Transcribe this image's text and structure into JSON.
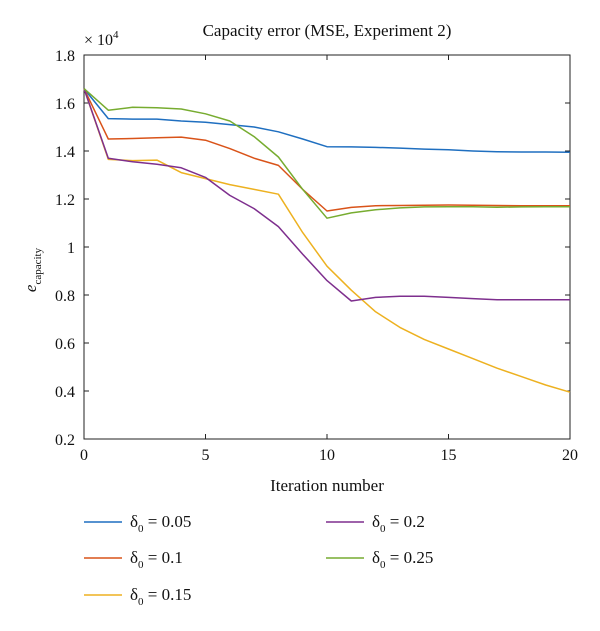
{
  "chart_data": {
    "type": "line",
    "title": "Capacity error (MSE, Experiment 2)",
    "xlabel": "Iteration number",
    "ylabel": "e",
    "ylabel_subscript": "capacity",
    "y_multiplier": "× 10",
    "y_multiplier_exponent": "4",
    "xlim": [
      0,
      20
    ],
    "ylim": [
      0.2,
      1.8
    ],
    "x_ticks": [
      0,
      5,
      10,
      15,
      20
    ],
    "y_ticks": [
      0.2,
      0.4,
      0.6,
      0.8,
      1,
      1.2,
      1.4,
      1.6,
      1.8
    ],
    "x_tick_labels": [
      "0",
      "5",
      "10",
      "15",
      "20"
    ],
    "y_tick_labels": [
      "0.2",
      "0.4",
      "0.6",
      "0.8",
      "1",
      "1.2",
      "1.4",
      "1.6",
      "1.8"
    ],
    "grid": false,
    "legend_position": "bottom",
    "x": [
      0,
      1,
      2,
      3,
      4,
      5,
      6,
      7,
      8,
      9,
      10,
      11,
      12,
      13,
      14,
      15,
      16,
      17,
      18,
      19,
      20
    ],
    "series": [
      {
        "name_symbol": "δ",
        "name_subscript": "0",
        "name_rest": " = 0.05",
        "color": "#1f6fc0",
        "values": [
          1.66,
          1.535,
          1.533,
          1.533,
          1.525,
          1.52,
          1.51,
          1.5,
          1.48,
          1.45,
          1.418,
          1.417,
          1.415,
          1.412,
          1.408,
          1.405,
          1.4,
          1.397,
          1.396,
          1.396,
          1.395
        ]
      },
      {
        "name_symbol": "δ",
        "name_subscript": "0",
        "name_rest": " = 0.1",
        "color": "#d95319",
        "values": [
          1.66,
          1.45,
          1.452,
          1.455,
          1.458,
          1.445,
          1.41,
          1.37,
          1.34,
          1.24,
          1.15,
          1.165,
          1.172,
          1.173,
          1.174,
          1.175,
          1.174,
          1.173,
          1.172,
          1.172,
          1.172
        ]
      },
      {
        "name_symbol": "δ",
        "name_subscript": "0",
        "name_rest": " = 0.15",
        "color": "#edb120",
        "values": [
          1.66,
          1.365,
          1.36,
          1.362,
          1.31,
          1.285,
          1.26,
          1.24,
          1.22,
          1.06,
          0.92,
          0.82,
          0.73,
          0.665,
          0.615,
          0.575,
          0.535,
          0.495,
          0.46,
          0.425,
          0.395
        ]
      },
      {
        "name_symbol": "δ",
        "name_subscript": "0",
        "name_rest": " = 0.2",
        "color": "#7e2f8e",
        "values": [
          1.66,
          1.37,
          1.355,
          1.345,
          1.33,
          1.29,
          1.215,
          1.16,
          1.085,
          0.97,
          0.86,
          0.775,
          0.79,
          0.795,
          0.795,
          0.79,
          0.785,
          0.78,
          0.78,
          0.78,
          0.78
        ]
      },
      {
        "name_symbol": "δ",
        "name_subscript": "0",
        "name_rest": " = 0.25",
        "color": "#77ac30",
        "values": [
          1.66,
          1.57,
          1.582,
          1.58,
          1.575,
          1.555,
          1.525,
          1.46,
          1.375,
          1.24,
          1.12,
          1.142,
          1.155,
          1.163,
          1.167,
          1.168,
          1.168,
          1.166,
          1.167,
          1.168,
          1.168
        ]
      }
    ]
  }
}
